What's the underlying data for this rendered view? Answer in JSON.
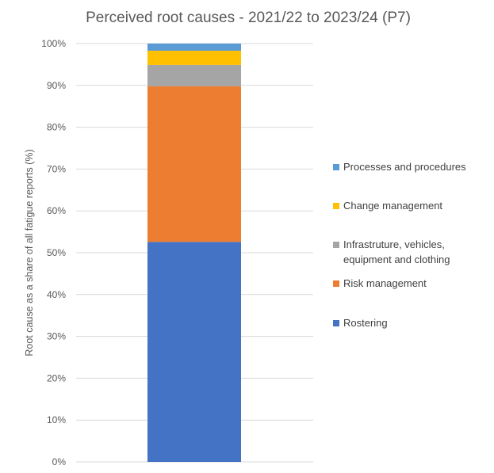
{
  "chart_data": {
    "type": "bar",
    "stacked": true,
    "title": "Perceived root causes - 2021/22 to 2023/24 (P7)",
    "xlabel": "",
    "ylabel": "Root cause as a share of all fatigue reports (%)",
    "ylim": [
      0,
      100
    ],
    "yticks": [
      "0%",
      "10%",
      "20%",
      "30%",
      "40%",
      "50%",
      "60%",
      "70%",
      "80%",
      "90%",
      "100%"
    ],
    "grid": true,
    "legend_position": "right",
    "categories": [
      ""
    ],
    "series": [
      {
        "name": "Rostering",
        "values": [
          52.6
        ],
        "color": "#4472C4"
      },
      {
        "name": "Risk management",
        "values": [
          37.2
        ],
        "color": "#ED7D31"
      },
      {
        "name": "Infrastruture, vehicles, equipment and clothing",
        "values": [
          5.1
        ],
        "color": "#A5A5A5"
      },
      {
        "name": "Change management",
        "values": [
          3.4
        ],
        "color": "#FFC000"
      },
      {
        "name": "Processes and procedures",
        "values": [
          1.7
        ],
        "color": "#5B9BD5"
      }
    ],
    "legend": [
      {
        "lines": [
          "Processes and procedures"
        ],
        "series": 4
      },
      {
        "lines": [
          "Change management"
        ],
        "series": 3
      },
      {
        "lines": [
          "Infrastruture, vehicles,",
          "equipment and clothing"
        ],
        "series": 2
      },
      {
        "lines": [
          "Risk management"
        ],
        "series": 1
      },
      {
        "lines": [
          "Rostering"
        ],
        "series": 0
      }
    ]
  }
}
